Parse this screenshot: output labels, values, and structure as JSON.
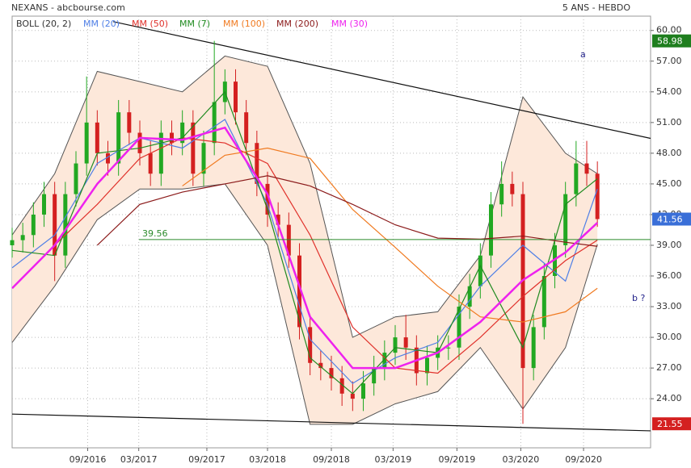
{
  "chart_data": {
    "type": "candlestick",
    "title": "NEXANS - abcbourse.com",
    "subtitle": "5 ANS - HEBDO",
    "xlim": [
      0,
      60
    ],
    "xticks": [
      {
        "value": 7.1,
        "label": "09/2016"
      },
      {
        "value": 11.9,
        "label": "03/2017"
      },
      {
        "value": 18.3,
        "label": "09/2017"
      },
      {
        "value": 24.0,
        "label": "03/2018"
      },
      {
        "value": 30.0,
        "label": "09/2018"
      },
      {
        "value": 35.8,
        "label": "03/2019"
      },
      {
        "value": 41.8,
        "label": "09/2019"
      },
      {
        "value": 47.8,
        "label": "03/2020"
      },
      {
        "value": 53.7,
        "label": "09/2020"
      }
    ],
    "ylim": [
      19.2,
      61.4
    ],
    "yticks": [
      {
        "value": 24,
        "label": "24.00"
      },
      {
        "value": 27,
        "label": "27.00"
      },
      {
        "value": 30,
        "label": "30.00"
      },
      {
        "value": 33,
        "label": "33.00"
      },
      {
        "value": 36,
        "label": "36.00"
      },
      {
        "value": 39,
        "label": "39.00"
      },
      {
        "value": 42,
        "label": "42.00"
      },
      {
        "value": 45,
        "label": "45.00"
      },
      {
        "value": 48,
        "label": "48.00"
      },
      {
        "value": 51,
        "label": "51.00"
      },
      {
        "value": 54,
        "label": "54.00"
      },
      {
        "value": 57,
        "label": "57.00"
      },
      {
        "value": 60,
        "label": "60.00"
      }
    ],
    "grid": true,
    "up_color": "#22a822",
    "down_color": "#d42020",
    "candles": {
      "x": [
        0,
        1,
        2,
        3,
        4,
        5,
        6,
        7,
        8,
        9,
        10,
        11,
        12,
        13,
        14,
        15,
        16,
        17,
        18,
        19,
        20,
        21,
        22,
        23,
        24,
        25,
        26,
        27,
        28,
        29,
        30,
        31,
        32,
        33,
        34,
        35,
        36,
        37,
        38,
        39,
        40,
        41,
        42,
        43,
        44,
        45,
        46,
        47,
        48,
        49,
        50,
        51,
        52,
        53,
        54,
        55
      ],
      "open": [
        39,
        39.5,
        40,
        42,
        44,
        38,
        44,
        47,
        51,
        48,
        47,
        52,
        50,
        48,
        46,
        50,
        49,
        51,
        46,
        49,
        53,
        55,
        52,
        49,
        45,
        42,
        41,
        38,
        31,
        27.5,
        27,
        26,
        24.5,
        24,
        25.5,
        27,
        28.5,
        30,
        29,
        26.5,
        28,
        29,
        29,
        33,
        35,
        38,
        43,
        45,
        44,
        27,
        31,
        36,
        39,
        44,
        47,
        46
      ],
      "high": [
        40.7,
        41.2,
        43.2,
        45.2,
        45.2,
        45.2,
        48.2,
        55.5,
        52.2,
        49.2,
        53.2,
        53.2,
        51.2,
        49.2,
        51.2,
        51.2,
        52.2,
        52.2,
        50.2,
        58.98,
        56.2,
        56.2,
        53.2,
        50.2,
        46.2,
        43.2,
        42.2,
        39.2,
        32.2,
        28.7,
        28.2,
        27.2,
        25.7,
        26.7,
        28.2,
        29.7,
        31.2,
        32.2,
        30.2,
        29.2,
        30.2,
        30.2,
        34.2,
        36.2,
        39.2,
        44.2,
        47.2,
        46.2,
        45.2,
        32.2,
        37.2,
        40.2,
        45.2,
        49.2,
        49.2,
        47.2
      ],
      "low": [
        37.8,
        38.3,
        38.8,
        40.8,
        35.5,
        36.8,
        42.8,
        45.8,
        46.8,
        45.8,
        45.8,
        48.8,
        46.8,
        44.8,
        44.8,
        47.8,
        47.8,
        44.8,
        44.8,
        47.8,
        51.8,
        50.8,
        47.8,
        43.8,
        40.8,
        39.8,
        36.8,
        29.8,
        26.3,
        25.8,
        24.8,
        23.3,
        22.8,
        22.8,
        24.3,
        25.8,
        27.3,
        27.8,
        25.3,
        25.3,
        26.8,
        27.8,
        27.8,
        31.8,
        33.8,
        36.8,
        41.8,
        42.8,
        21.55,
        25.8,
        29.8,
        34.8,
        37.8,
        42.8,
        44.8,
        40.8
      ],
      "close": [
        39.5,
        40,
        42,
        44,
        38,
        44,
        47,
        51,
        48,
        47,
        52,
        50,
        48,
        46,
        50,
        49,
        51,
        46,
        49,
        53,
        55,
        52,
        49,
        45,
        42,
        41,
        38,
        31,
        27.5,
        27,
        26,
        24.5,
        24,
        25.5,
        27,
        28.5,
        30,
        29,
        26.5,
        28,
        29,
        29,
        33,
        35,
        38,
        43,
        45,
        44,
        27,
        31,
        36,
        39,
        44,
        47,
        46,
        41.56
      ]
    },
    "bollinger": {
      "name": "BOLL (20, 2)",
      "color": "#555555",
      "fill": "#fde8da",
      "x": [
        0,
        4,
        8,
        12,
        16,
        20,
        24,
        28,
        32,
        36,
        40,
        44,
        48,
        52,
        55
      ],
      "upper": [
        40,
        46,
        56,
        55,
        54,
        57.5,
        56.5,
        47,
        30,
        32,
        32.5,
        38,
        53.5,
        48,
        46
      ],
      "lower": [
        29.5,
        35,
        41.5,
        44.5,
        44.5,
        45,
        39,
        21.5,
        21.5,
        23.5,
        24.7,
        29,
        23,
        29,
        39.1
      ]
    },
    "series": [
      {
        "name": "MM (20)",
        "color": "#4f7fe6",
        "x": [
          0,
          4,
          8,
          12,
          16,
          20,
          24,
          28,
          32,
          36,
          40,
          44,
          48,
          52,
          55
        ],
        "values": [
          36.8,
          40,
          47,
          49.5,
          48.5,
          51.3,
          43,
          29.8,
          25.5,
          28,
          29.5,
          35,
          39,
          35.5,
          44.5
        ]
      },
      {
        "name": "MM (50)",
        "color": "#e0302a",
        "x": [
          0,
          4,
          8,
          12,
          16,
          20,
          24,
          28,
          32,
          36,
          40,
          44,
          48,
          52,
          55
        ],
        "values": [
          null,
          39,
          43,
          47.5,
          49.5,
          49,
          47,
          40,
          31,
          27,
          26.5,
          30,
          34,
          37.5,
          39.5
        ]
      },
      {
        "name": "MM (7)",
        "color": "#1f8a1f",
        "x": [
          0,
          4,
          8,
          12,
          16,
          20,
          24,
          28,
          32,
          36,
          40,
          44,
          48,
          52,
          55
        ],
        "values": [
          38.5,
          38,
          48,
          48.5,
          49.5,
          54,
          42.5,
          28,
          24.5,
          29,
          28.5,
          37,
          29,
          43,
          45.5
        ]
      },
      {
        "name": "MM (100)",
        "color": "#f07a20",
        "x": [
          0,
          4,
          8,
          12,
          16,
          20,
          24,
          28,
          32,
          36,
          40,
          44,
          48,
          52,
          55
        ],
        "values": [
          null,
          null,
          null,
          null,
          44.8,
          47.8,
          48.5,
          47.5,
          42.5,
          38.8,
          35,
          32,
          31.5,
          32.5,
          34.8
        ]
      },
      {
        "name": "MM (200)",
        "color": "#8b1a1a",
        "x": [
          0,
          4,
          8,
          12,
          16,
          20,
          24,
          28,
          32,
          36,
          40,
          44,
          48,
          52,
          55
        ],
        "values": [
          null,
          null,
          39,
          43,
          44.2,
          45,
          45.8,
          44.8,
          43,
          41,
          39.7,
          39.6,
          39.9,
          39.3,
          38.9
        ]
      },
      {
        "name": "MM (30)",
        "color": "#ee22ee",
        "x": [
          0,
          4,
          8,
          12,
          16,
          20,
          24,
          28,
          32,
          36,
          40,
          44,
          48,
          52,
          55
        ],
        "values": [
          34.8,
          39,
          45,
          49.5,
          49.3,
          50.5,
          44,
          32,
          27,
          27,
          28.5,
          31.5,
          35.6,
          38.3,
          41.2
        ]
      }
    ],
    "trendlines": [
      {
        "x": [
          9.5,
          60
        ],
        "y": [
          60.86,
          49.45
        ]
      },
      {
        "x": [
          0,
          60
        ],
        "y": [
          22.5,
          20.86
        ]
      }
    ],
    "hline": {
      "value": 39.56,
      "label": "39.56",
      "color": "#2a8a2a"
    },
    "markers": [
      {
        "value": 58.98,
        "color": "#1e7e1e"
      },
      {
        "value": 41.56,
        "color": "#3a6fd8"
      },
      {
        "value": 21.55,
        "color": "#d42020"
      }
    ],
    "annotations": [
      "a",
      "b ?"
    ]
  }
}
